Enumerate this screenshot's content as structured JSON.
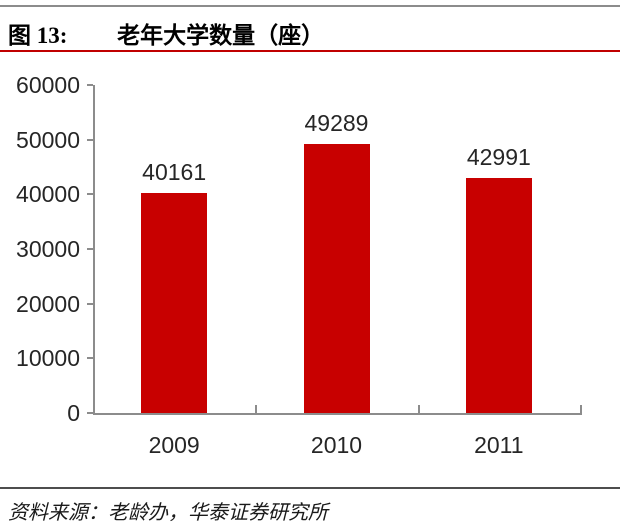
{
  "header": {
    "figure_label": "图 13:",
    "title": "老年大学数量（座）"
  },
  "chart_data": {
    "type": "bar",
    "categories": [
      "2009",
      "2010",
      "2011"
    ],
    "values": [
      40161,
      49289,
      42991
    ],
    "data_labels": [
      "40161",
      "49289",
      "42991"
    ],
    "title": "老年大学数量（座）",
    "xlabel": "",
    "ylabel": "",
    "ylim": [
      0,
      60000
    ],
    "yticks": [
      0,
      10000,
      20000,
      30000,
      40000,
      50000,
      60000
    ],
    "ytick_labels": [
      "0",
      "10000",
      "20000",
      "30000",
      "40000",
      "50000",
      "60000"
    ],
    "grid": false,
    "legend": "none",
    "bar_color": "#C80000"
  },
  "footer": {
    "source": "资料来源：老龄办，华泰证券研究所"
  },
  "colors": {
    "bar": "#C80000",
    "title_rule": "#C00000",
    "top_rule": "#8C8C8C",
    "axis": "#8C8C8C",
    "separator": "#4D4D4D",
    "label_text": "#262626"
  }
}
